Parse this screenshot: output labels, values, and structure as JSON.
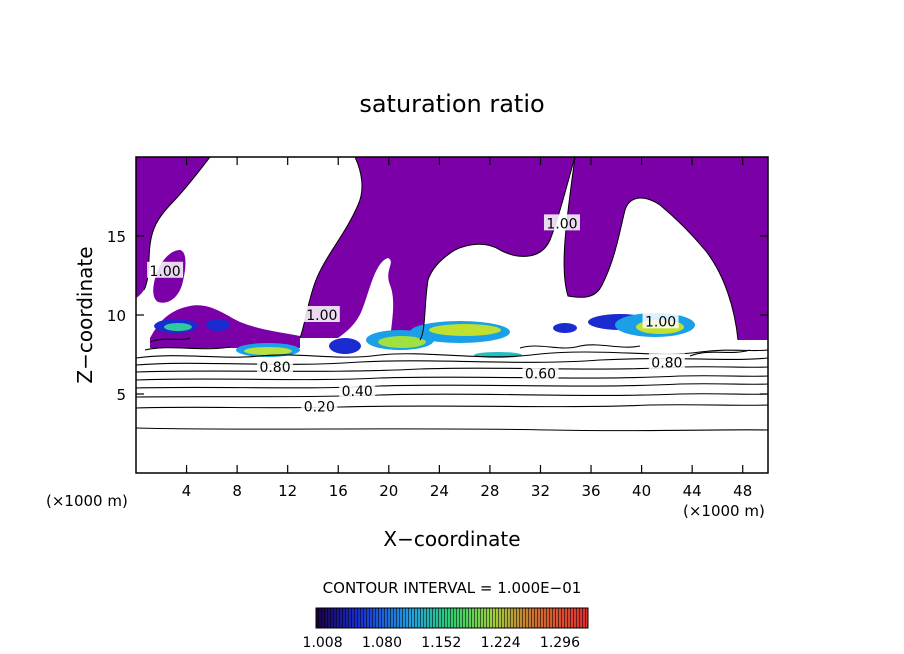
{
  "chart_data": {
    "type": "heatmap",
    "title": "saturation ratio",
    "xlabel": "X−coordinate",
    "ylabel": "Z−coordinate",
    "x_unit_left": "(×1000 m)",
    "x_unit_right": "(×1000 m)",
    "xlim": [
      0,
      50
    ],
    "ylim": [
      0,
      20
    ],
    "x_ticks": [
      4,
      8,
      12,
      16,
      20,
      24,
      28,
      32,
      36,
      40,
      44,
      48
    ],
    "y_ticks": [
      5,
      10,
      15
    ],
    "contour_interval_label": "CONTOUR INTERVAL = 1.000E−01",
    "colorbar": {
      "min": 1.0,
      "max": 1.33,
      "tick_values": [
        1.008,
        1.08,
        1.152,
        1.224,
        1.296
      ],
      "tick_labels": [
        "1.008",
        "1.080",
        "1.152",
        "1.224",
        "1.296"
      ]
    },
    "contour_labels": [
      {
        "text": "0.20",
        "x": 14.5,
        "z": 4.2
      },
      {
        "text": "0.40",
        "x": 17.5,
        "z": 5.2
      },
      {
        "text": "0.60",
        "x": 32.0,
        "z": 6.3
      },
      {
        "text": "0.80",
        "x": 11.0,
        "z": 6.7
      },
      {
        "text": "0.80",
        "x": 42.0,
        "z": 7.0
      },
      {
        "text": "1.00",
        "x": 2.3,
        "z": 12.8
      },
      {
        "text": "1.00",
        "x": 14.7,
        "z": 10.0
      },
      {
        "text": "1.00",
        "x": 33.7,
        "z": 15.8
      },
      {
        "text": "1.00",
        "x": 41.5,
        "z": 9.6
      }
    ],
    "colors": {
      "saturated_region": "#7b00a8",
      "low": "#0a1a8a",
      "mid_low": "#1aa0e8",
      "mid": "#30c8a0",
      "mid_high": "#c0e030",
      "high": "#d02020"
    }
  }
}
